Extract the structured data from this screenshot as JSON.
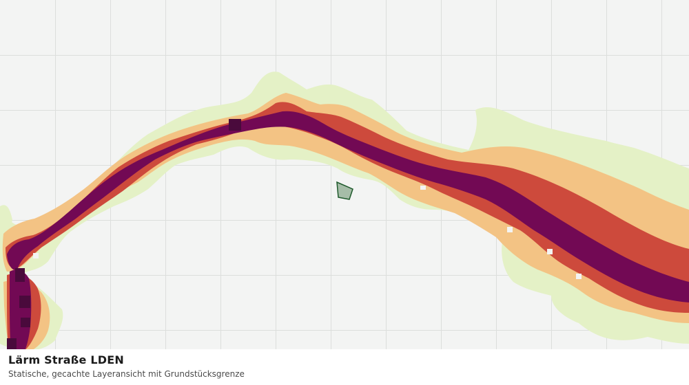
{
  "map": {
    "layer_title": "Lärm Straße LDEN",
    "layer_subtitle": "Statische, gecachte Layeransicht mit Grundstücksgrenze",
    "colors": {
      "background": "#f3f4f3",
      "grid": "#dcdedc",
      "noise_band_1": "#e4f1c6",
      "noise_band_2": "#f3c384",
      "noise_band_3": "#cd4a3c",
      "noise_band_4": "#720954",
      "noise_band_5": "#4a0a3c",
      "parcel_fill": "#a6bda8",
      "parcel_stroke": "#1f5a2c"
    },
    "symbols": {
      "parcel": "parcel-boundary-icon"
    }
  }
}
